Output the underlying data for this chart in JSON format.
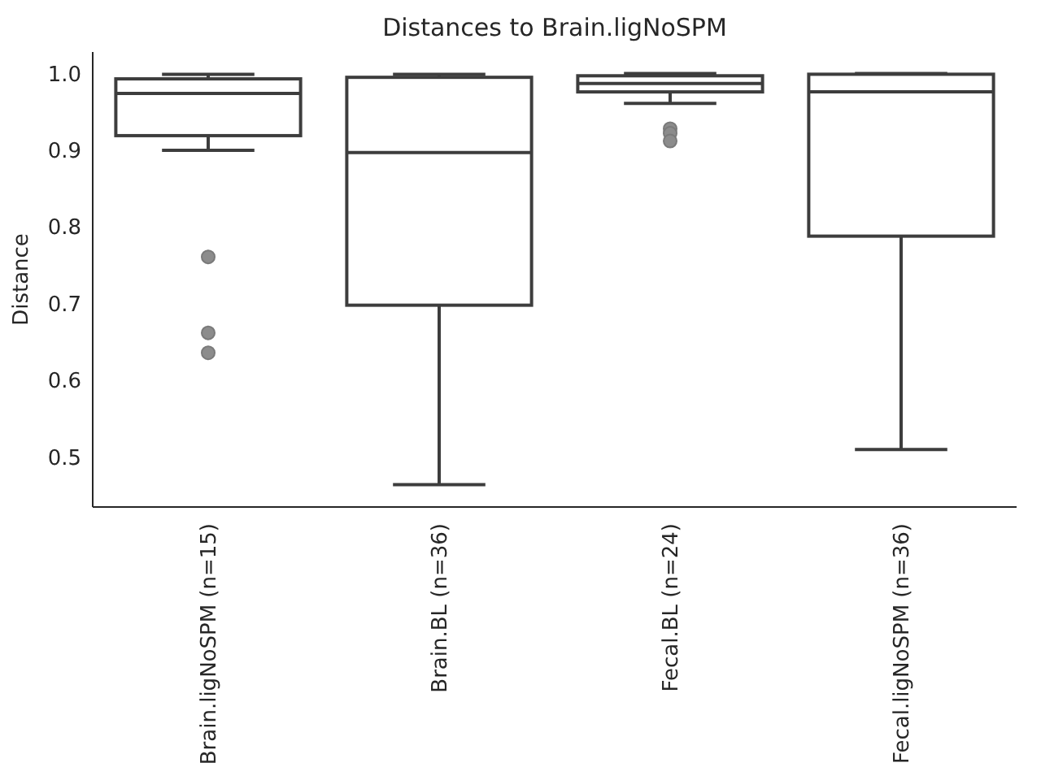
{
  "chart_data": {
    "type": "box",
    "title": "Distances to Brain.ligNoSPM",
    "ylabel": "Distance",
    "categories": [
      "Brain.ligNoSPM (n=15)",
      "Brain.BL (n=36)",
      "Fecal.BL (n=24)",
      "Fecal.ligNoSPM (n=36)"
    ],
    "boxes": [
      {
        "low": 0.9,
        "q1": 0.919,
        "median": 0.974,
        "q3": 0.993,
        "high": 0.999,
        "outliers": [
          0.761,
          0.662,
          0.636
        ]
      },
      {
        "low": 0.464,
        "q1": 0.698,
        "median": 0.897,
        "q3": 0.995,
        "high": 0.999
      },
      {
        "low": 0.961,
        "q1": 0.976,
        "median": 0.987,
        "q3": 0.997,
        "high": 1.0,
        "outliers": [
          0.928,
          0.922,
          0.912
        ]
      },
      {
        "low": 0.51,
        "q1": 0.788,
        "median": 0.976,
        "q3": 0.999,
        "high": 1.0
      }
    ],
    "color": "#3d3d3d",
    "ylim": [
      0.435,
      1.028
    ],
    "yticks": [
      0.5,
      0.6,
      0.7,
      0.8,
      0.9,
      {
        "value": 1,
        "label": "1.0"
      }
    ],
    "grid": false
  }
}
